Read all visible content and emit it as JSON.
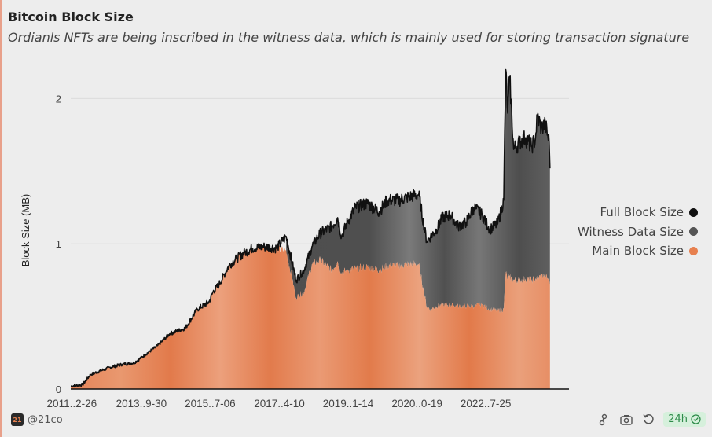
{
  "header": {
    "title": "Bitcoin Block Size",
    "subtitle": "Ordianls NFTs are being inscribed in the witness data, which is mainly used for storing transaction signature"
  },
  "chart_data": {
    "type": "area",
    "title": "Bitcoin Block Size",
    "subtitle": "Ordianls NFTs are being inscribed in the witness data, which is mainly used for storing transaction signature",
    "xlabel": "",
    "ylabel": "Block Size (MB)",
    "ylim": [
      0,
      2.3
    ],
    "yticks": [
      0,
      1,
      2
    ],
    "xlim": [
      2011.0,
      2023.6
    ],
    "xtick_labels": [
      "2011..2-26",
      "2013..9-30",
      "2015..7-06",
      "2017..4-10",
      "2019..1-14",
      "2020..0-19",
      "2022..7-25"
    ],
    "xtick_years": [
      2011.15,
      2012.9,
      2014.64,
      2016.39,
      2018.13,
      2019.87,
      2021.61
    ],
    "legend_position": "right",
    "series": [
      {
        "name": "Full Block Size",
        "color": "#111111",
        "x": [
          2011.0,
          2011.3,
          2011.5,
          2012.0,
          2012.3,
          2012.6,
          2012.9,
          2013.2,
          2013.5,
          2013.9,
          2014.2,
          2014.5,
          2014.6,
          2014.75,
          2015.0,
          2015.2,
          2015.4,
          2015.6,
          2015.9,
          2016.2,
          2016.45,
          2016.7,
          2016.9,
          2017.1,
          2017.3,
          2017.6,
          2017.75,
          2017.85,
          2018.0,
          2018.2,
          2018.5,
          2018.8,
          2019.0,
          2019.3,
          2019.5,
          2019.8,
          2020.0,
          2020.1,
          2020.25,
          2020.4,
          2020.6,
          2020.8,
          2021.0,
          2021.2,
          2021.4,
          2021.6,
          2021.8,
          2021.95,
          2022.0,
          2022.05,
          2022.1,
          2022.2,
          2022.35,
          2022.5,
          2022.65,
          2022.75,
          2022.8,
          2022.9,
          2023.0,
          2023.1,
          2023.12
        ],
        "values": [
          0.02,
          0.03,
          0.1,
          0.15,
          0.17,
          0.18,
          0.24,
          0.3,
          0.38,
          0.42,
          0.55,
          0.6,
          0.67,
          0.72,
          0.85,
          0.9,
          0.94,
          0.97,
          0.98,
          0.97,
          1.05,
          0.75,
          0.82,
          0.98,
          1.07,
          1.12,
          1.18,
          1.05,
          1.15,
          1.25,
          1.28,
          1.22,
          1.3,
          1.3,
          1.32,
          1.34,
          1.02,
          1.05,
          1.1,
          1.18,
          1.2,
          1.12,
          1.15,
          1.25,
          1.2,
          1.1,
          1.14,
          1.3,
          2.2,
          1.9,
          2.15,
          1.65,
          1.7,
          1.73,
          1.67,
          1.72,
          1.88,
          1.8,
          1.82,
          1.7,
          1.52
        ]
      },
      {
        "name": "Witness Data Size",
        "color": "#555555",
        "x": [
          2016.45,
          2016.7,
          2016.9,
          2017.1,
          2017.3,
          2017.6,
          2017.75,
          2017.85,
          2018.0,
          2018.2,
          2018.5,
          2018.8,
          2019.0,
          2019.3,
          2019.5,
          2019.8,
          2020.0,
          2020.1,
          2020.25,
          2020.4,
          2020.6,
          2020.8,
          2021.0,
          2021.2,
          2021.4,
          2021.6,
          2021.8,
          2021.95,
          2022.0,
          2022.05,
          2022.1,
          2022.2,
          2022.35,
          2022.5,
          2022.65,
          2022.75,
          2022.8,
          2022.9,
          2023.0,
          2023.1,
          2023.12
        ],
        "values": [
          0.1,
          0.12,
          0.15,
          0.12,
          0.18,
          0.3,
          0.3,
          0.25,
          0.33,
          0.42,
          0.44,
          0.4,
          0.45,
          0.45,
          0.46,
          0.48,
          0.45,
          0.5,
          0.53,
          0.6,
          0.62,
          0.55,
          0.58,
          0.68,
          0.62,
          0.55,
          0.6,
          0.75,
          1.4,
          1.14,
          1.38,
          0.9,
          0.95,
          0.97,
          0.92,
          0.96,
          1.12,
          1.02,
          1.04,
          0.95,
          0.8
        ]
      },
      {
        "name": "Main Block Size",
        "color": "#e7804f",
        "x": [
          2011.0,
          2011.3,
          2011.5,
          2012.0,
          2012.3,
          2012.6,
          2012.9,
          2013.2,
          2013.5,
          2013.9,
          2014.2,
          2014.5,
          2014.6,
          2014.75,
          2015.0,
          2015.2,
          2015.4,
          2015.6,
          2015.9,
          2016.2,
          2016.45,
          2016.7,
          2016.9,
          2017.1,
          2017.3,
          2017.6,
          2017.75,
          2017.85,
          2018.0,
          2018.2,
          2018.5,
          2018.8,
          2019.0,
          2019.3,
          2019.5,
          2019.8,
          2020.0,
          2020.1,
          2020.25,
          2020.4,
          2020.6,
          2020.8,
          2021.0,
          2021.2,
          2021.4,
          2021.6,
          2021.8,
          2021.95,
          2022.0,
          2022.05,
          2022.1,
          2022.2,
          2022.35,
          2022.5,
          2022.65,
          2022.75,
          2022.8,
          2022.9,
          2023.0,
          2023.1,
          2023.12
        ],
        "values": [
          0.02,
          0.03,
          0.1,
          0.15,
          0.17,
          0.18,
          0.24,
          0.3,
          0.38,
          0.42,
          0.55,
          0.6,
          0.67,
          0.72,
          0.85,
          0.9,
          0.94,
          0.97,
          0.98,
          0.97,
          0.95,
          0.63,
          0.67,
          0.86,
          0.89,
          0.82,
          0.88,
          0.8,
          0.82,
          0.83,
          0.84,
          0.82,
          0.85,
          0.85,
          0.86,
          0.86,
          0.57,
          0.55,
          0.57,
          0.58,
          0.58,
          0.57,
          0.57,
          0.57,
          0.58,
          0.55,
          0.54,
          0.55,
          0.8,
          0.76,
          0.77,
          0.75,
          0.75,
          0.76,
          0.75,
          0.76,
          0.76,
          0.78,
          0.78,
          0.75,
          0.72
        ]
      }
    ]
  },
  "footer": {
    "brand_logo_text": "21",
    "brand": "@21co",
    "badge": "24h",
    "icons": [
      "share-node-icon",
      "camera-icon",
      "refresh-icon",
      "check-circle-icon"
    ]
  }
}
